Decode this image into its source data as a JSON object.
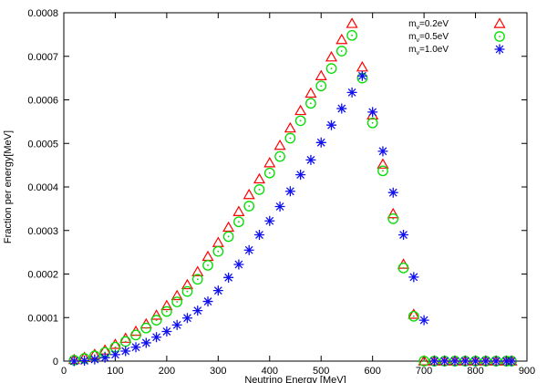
{
  "chart_data": {
    "type": "scatter",
    "xlabel": "Neutrino Energy [MeV]",
    "ylabel": "Fraction per energy[MeV]",
    "xlim": [
      0,
      900
    ],
    "ylim": [
      0,
      0.0008
    ],
    "xticks": [
      "0",
      "100",
      "200",
      "300",
      "400",
      "500",
      "600",
      "700",
      "800",
      "900"
    ],
    "yticks": [
      "0",
      "0.0001",
      "0.0002",
      "0.0003",
      "0.0004",
      "0.0005",
      "0.0006",
      "0.0007",
      "0.0008"
    ],
    "grid": false,
    "legend_position": "top-right",
    "series": [
      {
        "name": "m_ν=0.2eV",
        "legend_main": "m",
        "legend_sub": "ν",
        "legend_rest": "=0.2eV",
        "marker": "triangle",
        "color": "#ff0000",
        "x": [
          20,
          40,
          60,
          80,
          100,
          120,
          140,
          160,
          180,
          200,
          220,
          240,
          260,
          280,
          300,
          320,
          340,
          360,
          380,
          400,
          420,
          440,
          460,
          480,
          500,
          520,
          540,
          560,
          580,
          600,
          620,
          640,
          660,
          680,
          700,
          720,
          740,
          760,
          780,
          800,
          820,
          840,
          860,
          870
        ],
        "y": [
          3e-06,
          8e-06,
          1.5e-05,
          2.5e-05,
          3.8e-05,
          5.2e-05,
          6.8e-05,
          8.5e-05,
          0.000105,
          0.000127,
          0.00015,
          0.000175,
          0.000205,
          0.00024,
          0.000272,
          0.000307,
          0.000343,
          0.000382,
          0.000418,
          0.000455,
          0.000495,
          0.000535,
          0.000575,
          0.000615,
          0.000655,
          0.000698,
          0.000738,
          0.000775,
          0.000675,
          0.000565,
          0.000452,
          0.000338,
          0.000222,
          0.000107,
          0,
          0,
          0,
          0,
          0,
          0,
          0,
          0,
          0,
          0
        ]
      },
      {
        "name": "m_ν=0.5eV",
        "legend_main": "m",
        "legend_sub": "ν",
        "legend_rest": "=0.5eV",
        "marker": "circle",
        "color": "#00dd00",
        "x": [
          20,
          40,
          60,
          80,
          100,
          120,
          140,
          160,
          180,
          200,
          220,
          240,
          260,
          280,
          300,
          320,
          340,
          360,
          380,
          400,
          420,
          440,
          460,
          480,
          500,
          520,
          540,
          560,
          580,
          600,
          620,
          640,
          660,
          680,
          700,
          720,
          740,
          760,
          780,
          800,
          820,
          840,
          860,
          870
        ],
        "y": [
          2e-06,
          6e-06,
          1.2e-05,
          2e-05,
          3.2e-05,
          4.5e-05,
          6e-05,
          7.6e-05,
          9.4e-05,
          0.000114,
          0.000136,
          0.00016,
          0.000188,
          0.00022,
          0.000252,
          0.000286,
          0.00032,
          0.000356,
          0.000394,
          0.000432,
          0.00047,
          0.000512,
          0.000552,
          0.000592,
          0.000632,
          0.000672,
          0.000712,
          0.000748,
          0.00065,
          0.000547,
          0.000437,
          0.000327,
          0.000214,
          0.000103,
          0,
          0,
          0,
          0,
          0,
          0,
          0,
          0,
          0,
          0
        ]
      },
      {
        "name": "m_ν=1.0eV",
        "legend_main": "m",
        "legend_sub": "ν",
        "legend_rest": "=1.0eV",
        "marker": "star",
        "color": "#1010ee",
        "x": [
          20,
          40,
          60,
          80,
          100,
          120,
          140,
          160,
          180,
          200,
          220,
          240,
          260,
          280,
          300,
          320,
          340,
          360,
          380,
          400,
          420,
          440,
          460,
          480,
          500,
          520,
          540,
          560,
          580,
          600,
          620,
          640,
          660,
          680,
          700,
          720,
          740,
          760,
          780,
          800,
          820,
          840,
          860,
          870
        ],
        "y": [
          0,
          1e-06,
          4e-06,
          8e-06,
          1.5e-05,
          2.3e-05,
          3.2e-05,
          4.2e-05,
          5.5e-05,
          6.8e-05,
          8.3e-05,
          9.9e-05,
          0.000116,
          0.000137,
          0.000162,
          0.000192,
          0.000222,
          0.000255,
          0.00029,
          0.000322,
          0.000355,
          0.00039,
          0.000428,
          0.000462,
          0.000502,
          0.000542,
          0.00058,
          0.000617,
          0.000655,
          0.000572,
          0.000482,
          0.000387,
          0.00029,
          0.000193,
          9.4e-05,
          0,
          0,
          0,
          0,
          0,
          0,
          0,
          0,
          0
        ]
      }
    ]
  }
}
